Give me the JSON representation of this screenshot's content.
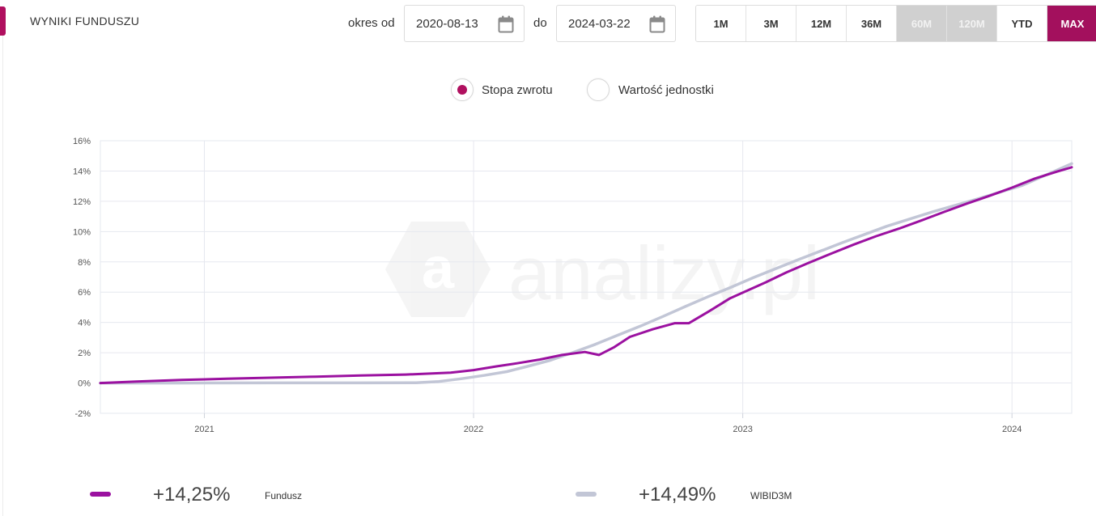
{
  "header": {
    "title": "WYNIKI FUNDUSZU"
  },
  "period": {
    "from_label": "okres od",
    "from_value": "2020-08-13",
    "to_label": "do",
    "to_value": "2024-03-22",
    "calendar_icon": "calendar-icon"
  },
  "ranges": [
    {
      "label": "1M",
      "state": "normal"
    },
    {
      "label": "3M",
      "state": "normal"
    },
    {
      "label": "12M",
      "state": "normal"
    },
    {
      "label": "36M",
      "state": "normal"
    },
    {
      "label": "60M",
      "state": "disabled"
    },
    {
      "label": "120M",
      "state": "disabled"
    },
    {
      "label": "YTD",
      "state": "normal"
    },
    {
      "label": "MAX",
      "state": "active"
    }
  ],
  "view_toggle": {
    "options": [
      {
        "label": "Stopa zwrotu",
        "selected": true
      },
      {
        "label": "Wartość jednostki",
        "selected": false
      }
    ]
  },
  "colors": {
    "accent": "#b0105f",
    "fund": "#9b11a0",
    "benchmark": "#c2c6d6",
    "active_range": "#a3105d"
  },
  "chart_data": {
    "type": "line",
    "xlabel": "",
    "ylabel": "",
    "x_range": [
      "2020-08-13",
      "2024-03-22"
    ],
    "ylim": [
      -2,
      16
    ],
    "y_ticks": [
      -2,
      0,
      2,
      4,
      6,
      8,
      10,
      12,
      14,
      16
    ],
    "y_tick_suffix": "%",
    "x_ticks": [
      {
        "date": "2021-01-01",
        "label": "2021"
      },
      {
        "date": "2022-01-01",
        "label": "2022"
      },
      {
        "date": "2023-01-01",
        "label": "2023"
      },
      {
        "date": "2024-01-01",
        "label": "2024"
      }
    ],
    "grid": true,
    "series": [
      {
        "name": "Fundusz",
        "color": "#9b11a0",
        "points": [
          [
            "2020-08-13",
            0.0
          ],
          [
            "2020-10-01",
            0.1
          ],
          [
            "2020-12-01",
            0.2
          ],
          [
            "2021-02-01",
            0.28
          ],
          [
            "2021-04-01",
            0.35
          ],
          [
            "2021-06-01",
            0.42
          ],
          [
            "2021-08-01",
            0.5
          ],
          [
            "2021-10-01",
            0.56
          ],
          [
            "2021-12-01",
            0.68
          ],
          [
            "2022-01-01",
            0.85
          ],
          [
            "2022-02-01",
            1.1
          ],
          [
            "2022-03-01",
            1.3
          ],
          [
            "2022-04-01",
            1.55
          ],
          [
            "2022-05-01",
            1.85
          ],
          [
            "2022-06-01",
            2.05
          ],
          [
            "2022-06-20",
            1.85
          ],
          [
            "2022-07-10",
            2.35
          ],
          [
            "2022-08-01",
            3.05
          ],
          [
            "2022-09-01",
            3.55
          ],
          [
            "2022-10-01",
            3.95
          ],
          [
            "2022-10-20",
            3.95
          ],
          [
            "2022-11-15",
            4.7
          ],
          [
            "2022-12-15",
            5.6
          ],
          [
            "2023-02-01",
            6.65
          ],
          [
            "2023-03-01",
            7.3
          ],
          [
            "2023-04-01",
            7.95
          ],
          [
            "2023-05-01",
            8.55
          ],
          [
            "2023-06-01",
            9.15
          ],
          [
            "2023-07-01",
            9.7
          ],
          [
            "2023-08-01",
            10.2
          ],
          [
            "2023-09-01",
            10.75
          ],
          [
            "2023-10-01",
            11.3
          ],
          [
            "2023-11-01",
            11.85
          ],
          [
            "2023-12-01",
            12.35
          ],
          [
            "2024-01-01",
            12.9
          ],
          [
            "2024-02-01",
            13.5
          ],
          [
            "2024-03-01",
            13.95
          ],
          [
            "2024-03-22",
            14.25
          ]
        ]
      },
      {
        "name": "WIBID3M",
        "color": "#c2c6d6",
        "points": [
          [
            "2020-08-13",
            0.0
          ],
          [
            "2020-12-01",
            0.0
          ],
          [
            "2021-04-01",
            0.01
          ],
          [
            "2021-08-01",
            0.01
          ],
          [
            "2021-10-15",
            0.02
          ],
          [
            "2021-11-15",
            0.1
          ],
          [
            "2021-12-15",
            0.28
          ],
          [
            "2022-01-15",
            0.5
          ],
          [
            "2022-02-15",
            0.75
          ],
          [
            "2022-03-15",
            1.1
          ],
          [
            "2022-04-15",
            1.5
          ],
          [
            "2022-05-15",
            2.0
          ],
          [
            "2022-06-15",
            2.55
          ],
          [
            "2022-07-15",
            3.15
          ],
          [
            "2022-08-15",
            3.75
          ],
          [
            "2022-09-15",
            4.4
          ],
          [
            "2022-10-15",
            5.05
          ],
          [
            "2022-11-15",
            5.7
          ],
          [
            "2022-12-15",
            6.3
          ],
          [
            "2023-01-15",
            6.95
          ],
          [
            "2023-03-15",
            8.1
          ],
          [
            "2023-05-15",
            9.25
          ],
          [
            "2023-07-15",
            10.35
          ],
          [
            "2023-09-15",
            11.3
          ],
          [
            "2023-11-15",
            12.15
          ],
          [
            "2024-01-15",
            13.05
          ],
          [
            "2024-03-22",
            14.49
          ]
        ]
      }
    ],
    "watermark": "analizy.pl"
  },
  "legend": [
    {
      "value": "+14,25%",
      "name": "Fundusz",
      "color": "#9b11a0"
    },
    {
      "value": "+14,49%",
      "name": "WIBID3M",
      "color": "#c2c6d6"
    }
  ]
}
